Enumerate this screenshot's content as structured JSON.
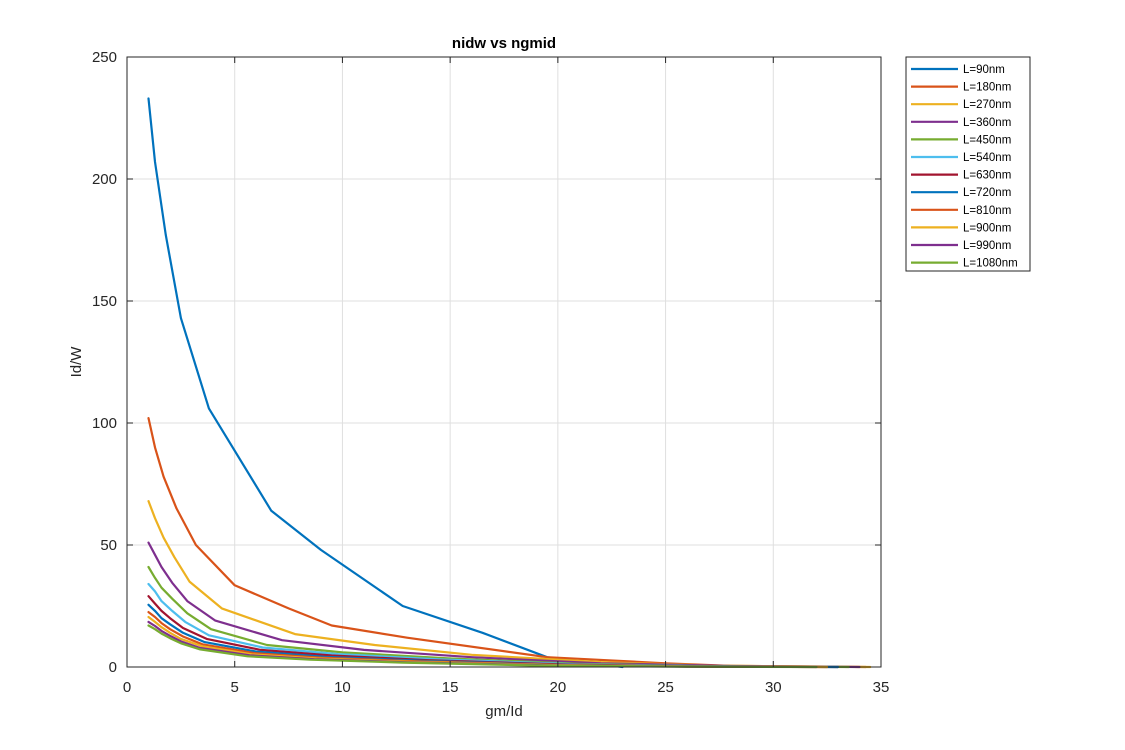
{
  "chart_data": {
    "type": "line",
    "title": "nidw vs ngmid",
    "xlabel": "gm/Id",
    "ylabel": "Id/W",
    "xlim": [
      0,
      35
    ],
    "ylim": [
      0,
      250
    ],
    "xticks": [
      "0",
      "5",
      "10",
      "15",
      "20",
      "25",
      "30",
      "35"
    ],
    "yticks": [
      "0",
      "50",
      "100",
      "150",
      "200",
      "250"
    ],
    "grid": true,
    "legend_position": "outside-top-right",
    "series": [
      {
        "name": "L=90nm",
        "color": "#0072BD",
        "x": [
          1.0,
          1.3,
          1.8,
          2.5,
          3.8,
          6.7,
          9.0,
          12.8,
          16.5,
          19.5,
          23.0
        ],
        "y": [
          233,
          207,
          177,
          143,
          106,
          64,
          48,
          25,
          14,
          4,
          0
        ]
      },
      {
        "name": "L=180nm",
        "color": "#D95319",
        "x": [
          1.0,
          1.3,
          1.7,
          2.3,
          3.2,
          5.0,
          7.5,
          9.5,
          13.0,
          19.5,
          25.0,
          28.0,
          32.0,
          34.3
        ],
        "y": [
          102,
          90,
          78,
          65,
          50,
          33.5,
          24,
          17,
          12,
          4,
          1.5,
          0.5,
          0.2,
          0
        ]
      },
      {
        "name": "L=270nm",
        "color": "#EDB120",
        "x": [
          1.0,
          1.3,
          1.7,
          2.2,
          2.9,
          4.4,
          7.8,
          11.5,
          16.0,
          22.0,
          27.0,
          31.0,
          34.5
        ],
        "y": [
          68,
          61,
          53,
          45,
          35,
          24,
          13.5,
          9,
          5,
          2,
          0.6,
          0.2,
          0
        ]
      },
      {
        "name": "L=360nm",
        "color": "#7E2F8E",
        "x": [
          1.0,
          1.3,
          1.6,
          2.1,
          2.8,
          4.1,
          7.2,
          11.0,
          16.0,
          22.0,
          28.0,
          34.0
        ],
        "y": [
          51,
          46,
          41,
          34.5,
          27,
          19,
          11,
          7,
          4,
          1.5,
          0.4,
          0
        ]
      },
      {
        "name": "L=450nm",
        "color": "#77AC30",
        "x": [
          1.0,
          1.3,
          1.6,
          2.1,
          2.8,
          3.9,
          6.5,
          10.0,
          15.0,
          21.0,
          27.0,
          33.5
        ],
        "y": [
          41,
          36.5,
          32.5,
          28,
          22,
          15.5,
          9,
          6,
          3.5,
          1.3,
          0.3,
          0
        ]
      },
      {
        "name": "L=540nm",
        "color": "#4DBEEE",
        "x": [
          1.0,
          1.3,
          1.6,
          2.1,
          2.7,
          3.8,
          6.3,
          9.8,
          14.5,
          21.0,
          27.0,
          33.0
        ],
        "y": [
          34,
          31,
          27,
          23,
          18.5,
          13,
          8,
          5.3,
          3.1,
          1.1,
          0.3,
          0
        ]
      },
      {
        "name": "L=630nm",
        "color": "#A2142F",
        "x": [
          1.0,
          1.3,
          1.6,
          2.0,
          2.6,
          3.7,
          6.2,
          9.5,
          14.0,
          20.5,
          26.5,
          33.0
        ],
        "y": [
          29,
          26,
          23,
          20,
          16,
          11.5,
          7,
          4.7,
          2.8,
          1,
          0.3,
          0
        ]
      },
      {
        "name": "L=720nm",
        "color": "#0072BD",
        "x": [
          1.0,
          1.3,
          1.6,
          2.0,
          2.6,
          3.6,
          6.0,
          9.2,
          13.8,
          20.0,
          26.5,
          33.0
        ],
        "y": [
          25.5,
          23,
          20,
          17.5,
          14,
          10.2,
          6.3,
          4.2,
          2.5,
          0.9,
          0.25,
          0
        ]
      },
      {
        "name": "L=810nm",
        "color": "#D95319",
        "x": [
          1.0,
          1.3,
          1.6,
          2.0,
          2.6,
          3.5,
          5.9,
          9.0,
          13.5,
          20.0,
          26.0,
          32.5
        ],
        "y": [
          22.5,
          20.5,
          18,
          15.5,
          12.5,
          9.3,
          5.7,
          3.8,
          2.3,
          0.8,
          0.2,
          0
        ]
      },
      {
        "name": "L=900nm",
        "color": "#EDB120",
        "x": [
          1.0,
          1.3,
          1.6,
          2.0,
          2.5,
          3.5,
          5.8,
          8.8,
          13.2,
          19.5,
          26.0,
          32.5
        ],
        "y": [
          20.5,
          18.5,
          16.3,
          14,
          11.5,
          8.5,
          5.2,
          3.5,
          2.1,
          0.8,
          0.2,
          0
        ]
      },
      {
        "name": "L=990nm",
        "color": "#7E2F8E",
        "x": [
          1.0,
          1.3,
          1.6,
          2.0,
          2.5,
          3.4,
          5.7,
          8.7,
          13.0,
          19.5,
          26.0,
          32.0
        ],
        "y": [
          18.5,
          16.8,
          14.8,
          12.8,
          10.5,
          7.8,
          4.8,
          3.2,
          1.9,
          0.7,
          0.2,
          0
        ]
      },
      {
        "name": "L=1080nm",
        "color": "#77AC30",
        "x": [
          1.0,
          1.3,
          1.6,
          2.0,
          2.5,
          3.4,
          5.6,
          8.5,
          12.8,
          19.0,
          25.5,
          32.0
        ],
        "y": [
          17,
          15.5,
          13.7,
          11.8,
          9.7,
          7.2,
          4.4,
          3,
          1.8,
          0.6,
          0.15,
          0
        ]
      }
    ]
  }
}
